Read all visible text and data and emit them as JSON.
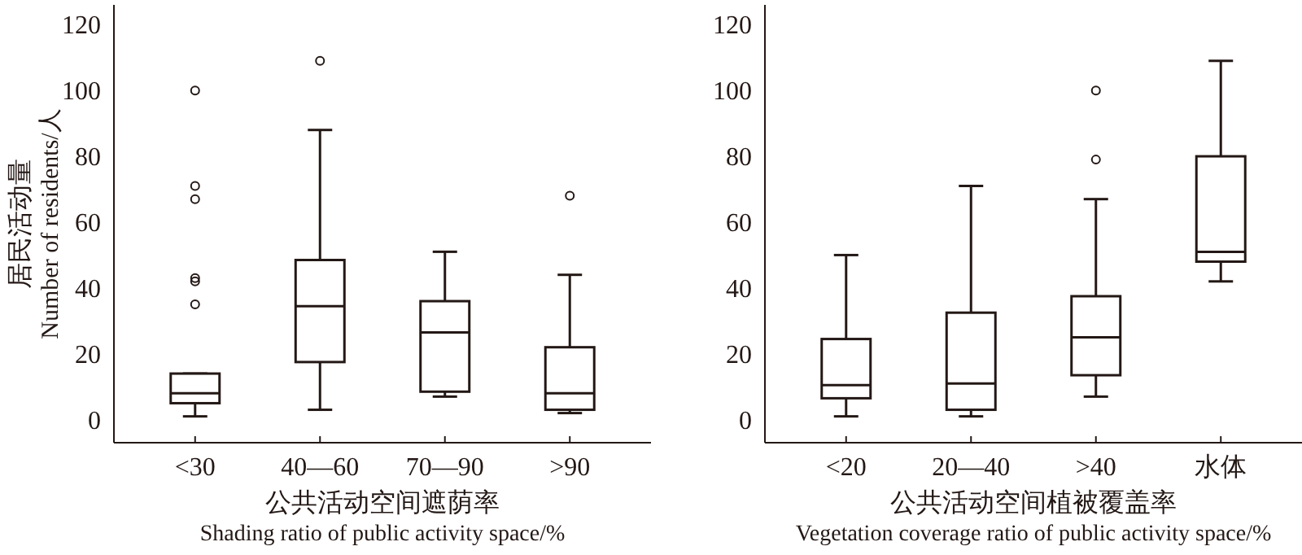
{
  "chart_data": [
    {
      "type": "box",
      "xlabel": "公共活动空间遮荫率\nShading ratio of public activity space/%",
      "ylabel": "居民活动量\nNumber of residents/人",
      "categories": [
        "<30",
        "40—60",
        "70—90",
        ">90"
      ],
      "ylim": [
        -7,
        126
      ],
      "yticks": [
        0,
        20,
        40,
        60,
        80,
        100,
        120
      ],
      "boxes": [
        {
          "low": 1,
          "q1": 5,
          "median": 8,
          "q3": 14,
          "high": 14,
          "outliers": [
            35,
            42,
            43,
            67,
            71,
            100
          ]
        },
        {
          "low": 3,
          "q1": 17.5,
          "median": 34.5,
          "q3": 48.5,
          "high": 88,
          "outliers": [
            109
          ]
        },
        {
          "low": 7,
          "q1": 8.5,
          "median": 26.5,
          "q3": 36,
          "high": 51
        },
        {
          "low": 2,
          "q1": 3,
          "median": 8,
          "q3": 22,
          "high": 44,
          "outliers": [
            68
          ]
        }
      ]
    },
    {
      "type": "box",
      "xlabel": "公共活动空间植被覆盖率\nVegetation coverage ratio of public activity space/%",
      "categories": [
        "<20",
        "20—40",
        ">40",
        "水体"
      ],
      "ylim": [
        -7,
        126
      ],
      "yticks": [
        0,
        20,
        40,
        60,
        80,
        100,
        120
      ],
      "boxes": [
        {
          "low": 1,
          "q1": 6.5,
          "median": 10.5,
          "q3": 24.5,
          "high": 50
        },
        {
          "low": 1,
          "q1": 3,
          "median": 11,
          "q3": 32.5,
          "high": 71
        },
        {
          "low": 7,
          "q1": 13.5,
          "median": 25,
          "q3": 37.5,
          "high": 67,
          "outliers": [
            79,
            100
          ]
        },
        {
          "low": 42,
          "q1": 48,
          "median": 51,
          "q3": 80,
          "high": 109
        }
      ]
    }
  ]
}
